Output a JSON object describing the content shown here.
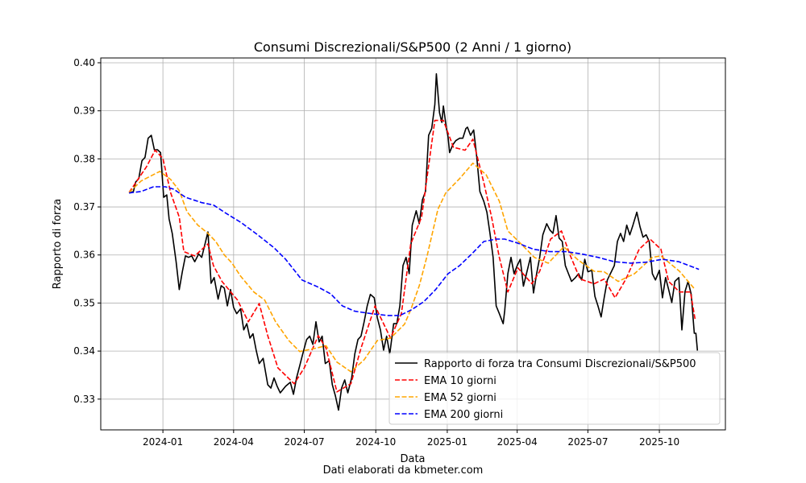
{
  "chart_data": {
    "type": "line",
    "title": "Consumi Discrezionali/S&P500 (2 Anni / 1 giorno)",
    "xlabel": "Data",
    "ylabel": "Rapporto di forza",
    "footnote": "Dati elaborati da kbmeter.com",
    "x_units": "days since 2024-01-01",
    "xlim": [
      -80,
      724
    ],
    "ylim": [
      0.3236,
      0.401
    ],
    "grid": true,
    "legend_position": "lower-right",
    "xticks": [
      {
        "value": 0,
        "label": "2024-01"
      },
      {
        "value": 91,
        "label": "2024-04"
      },
      {
        "value": 182,
        "label": "2024-07"
      },
      {
        "value": 274,
        "label": "2024-10"
      },
      {
        "value": 366,
        "label": "2025-01"
      },
      {
        "value": 456,
        "label": "2025-04"
      },
      {
        "value": 547,
        "label": "2025-07"
      },
      {
        "value": 639,
        "label": "2025-10"
      }
    ],
    "yticks": [
      {
        "value": 0.33,
        "label": "0.33"
      },
      {
        "value": 0.34,
        "label": "0.34"
      },
      {
        "value": 0.35,
        "label": "0.35"
      },
      {
        "value": 0.36,
        "label": "0.36"
      },
      {
        "value": 0.37,
        "label": "0.37"
      },
      {
        "value": 0.38,
        "label": "0.38"
      },
      {
        "value": 0.39,
        "label": "0.39"
      },
      {
        "value": 0.4,
        "label": "0.40"
      }
    ],
    "series": [
      {
        "name": "Rapporto di forza tra Consumi Discrezionali/S&P500",
        "color": "#000000",
        "style": "solid",
        "x": [
          -43.5,
          -38,
          -35,
          -31,
          -27,
          -23,
          -19,
          -15,
          -11,
          -7,
          -3,
          1,
          5,
          8,
          12,
          17,
          21,
          25,
          29,
          33,
          37,
          41,
          46,
          50,
          56,
          58,
          62,
          66,
          71,
          75,
          79,
          83,
          87,
          91,
          95,
          100,
          104,
          108,
          112,
          116,
          120,
          124,
          129,
          135,
          139,
          143,
          147,
          151,
          158,
          164,
          168,
          172,
          176,
          180,
          185,
          189,
          193,
          197,
          201,
          205,
          209,
          214,
          218,
          222,
          226,
          230,
          234,
          238,
          243,
          247,
          251,
          255,
          259,
          263,
          267,
          272,
          276,
          280,
          284,
          288,
          292,
          297,
          301,
          305,
          309,
          313,
          317,
          321,
          326,
          330,
          334,
          338,
          342,
          346,
          350,
          352,
          356,
          359,
          361,
          365,
          367,
          369,
          373,
          377,
          382,
          386,
          390,
          392,
          396,
          400,
          404,
          408,
          413,
          417,
          421,
          425,
          429,
          433,
          438,
          440,
          444,
          448,
          452,
          456,
          460,
          464,
          469,
          473,
          477,
          481,
          485,
          489,
          494,
          498,
          502,
          506,
          510,
          514,
          518,
          522,
          526,
          531,
          535,
          539,
          543,
          547,
          552,
          556,
          560,
          564,
          568,
          572,
          576,
          581,
          585,
          589,
          593,
          597,
          601,
          605,
          610,
          614,
          618,
          622,
          626,
          630,
          634,
          639,
          643,
          647,
          651,
          655,
          659,
          664,
          668,
          672,
          676,
          680,
          684,
          686,
          688
        ],
        "y": [
          0.3729,
          0.3732,
          0.3752,
          0.3759,
          0.3796,
          0.3803,
          0.3843,
          0.3849,
          0.3819,
          0.3819,
          0.3813,
          0.372,
          0.3725,
          0.3675,
          0.3645,
          0.3586,
          0.3528,
          0.3565,
          0.3598,
          0.3595,
          0.3598,
          0.3586,
          0.3602,
          0.3595,
          0.3635,
          0.3648,
          0.3541,
          0.3553,
          0.3508,
          0.3536,
          0.3531,
          0.3494,
          0.3528,
          0.3491,
          0.3478,
          0.3488,
          0.3444,
          0.3457,
          0.3427,
          0.3436,
          0.3402,
          0.3374,
          0.3385,
          0.333,
          0.3323,
          0.3344,
          0.3327,
          0.3313,
          0.3327,
          0.3335,
          0.331,
          0.3344,
          0.3369,
          0.3394,
          0.3424,
          0.3431,
          0.3414,
          0.3461,
          0.3419,
          0.3431,
          0.3374,
          0.338,
          0.333,
          0.3307,
          0.3277,
          0.3323,
          0.334,
          0.3313,
          0.3344,
          0.3394,
          0.3424,
          0.3431,
          0.3461,
          0.3494,
          0.3518,
          0.3511,
          0.3469,
          0.3444,
          0.3402,
          0.3431,
          0.3394,
          0.3457,
          0.3457,
          0.3494,
          0.3578,
          0.3595,
          0.3561,
          0.3662,
          0.3692,
          0.3665,
          0.3715,
          0.3732,
          0.3849,
          0.3863,
          0.3913,
          0.3977,
          0.3896,
          0.3876,
          0.391,
          0.3863,
          0.3846,
          0.3813,
          0.3829,
          0.3838,
          0.3843,
          0.3843,
          0.3863,
          0.3866,
          0.3849,
          0.386,
          0.3804,
          0.3732,
          0.3712,
          0.3689,
          0.3645,
          0.3595,
          0.3494,
          0.3478,
          0.3457,
          0.3484,
          0.3561,
          0.3595,
          0.3561,
          0.3578,
          0.3591,
          0.3535,
          0.3568,
          0.3595,
          0.3521,
          0.3561,
          0.3595,
          0.3642,
          0.3665,
          0.3652,
          0.3645,
          0.3682,
          0.3635,
          0.3628,
          0.3578,
          0.3561,
          0.3545,
          0.3553,
          0.3561,
          0.3548,
          0.3591,
          0.3565,
          0.3568,
          0.3514,
          0.3494,
          0.3471,
          0.3511,
          0.3548,
          0.3561,
          0.3578,
          0.3628,
          0.3645,
          0.3628,
          0.3662,
          0.3642,
          0.3662,
          0.3689,
          0.3659,
          0.3637,
          0.3642,
          0.3628,
          0.3561,
          0.3548,
          0.3568,
          0.3511,
          0.3553,
          0.3528,
          0.3501,
          0.3545,
          0.3553,
          0.3444,
          0.3524,
          0.3545,
          0.3518,
          0.3437,
          0.3437,
          0.3401
        ]
      },
      {
        "name": "EMA 10 giorni",
        "color": "#ff0000",
        "style": "dashed",
        "x": [
          -43.5,
          -21,
          -10,
          0,
          10,
          21,
          27,
          41,
          58,
          65,
          76,
          96,
          110,
          124,
          135,
          148,
          169,
          182,
          200,
          210,
          224,
          242,
          255,
          273,
          293,
          307,
          319,
          333,
          350,
          361,
          374,
          389,
          399,
          413,
          423,
          433,
          444,
          457,
          475,
          485,
          499,
          513,
          524,
          537,
          555,
          568,
          582,
          596,
          613,
          627,
          641,
          651,
          665,
          679,
          685
        ],
        "y": [
          0.373,
          0.3784,
          0.3818,
          0.3801,
          0.3729,
          0.3679,
          0.3607,
          0.3598,
          0.3623,
          0.3578,
          0.3545,
          0.3506,
          0.3461,
          0.3499,
          0.3432,
          0.3365,
          0.3332,
          0.3365,
          0.3432,
          0.3406,
          0.3315,
          0.3332,
          0.3406,
          0.3494,
          0.3427,
          0.3478,
          0.3623,
          0.3679,
          0.388,
          0.388,
          0.3824,
          0.3818,
          0.3841,
          0.3751,
          0.3679,
          0.3595,
          0.3523,
          0.3573,
          0.354,
          0.3566,
          0.3633,
          0.365,
          0.36,
          0.355,
          0.354,
          0.355,
          0.3511,
          0.355,
          0.3612,
          0.3633,
          0.3612,
          0.3545,
          0.3523,
          0.3523,
          0.3466
        ]
      },
      {
        "name": "EMA 52 giorni",
        "color": "#ffa500",
        "style": "dashed",
        "x": [
          -43.5,
          -28,
          -4,
          10,
          21,
          31,
          45,
          58,
          68,
          79,
          89,
          100,
          117,
          131,
          145,
          162,
          176,
          197,
          210,
          224,
          242,
          259,
          276,
          293,
          311,
          319,
          330,
          340,
          354,
          364,
          382,
          399,
          416,
          433,
          444,
          461,
          478,
          496,
          516,
          534,
          555,
          568,
          586,
          607,
          630,
          641,
          665,
          685
        ],
        "y": [
          0.373,
          0.3754,
          0.3774,
          0.3757,
          0.3734,
          0.369,
          0.3662,
          0.3645,
          0.3628,
          0.36,
          0.3583,
          0.3556,
          0.3523,
          0.3506,
          0.3461,
          0.3422,
          0.3399,
          0.3406,
          0.3411,
          0.3377,
          0.3357,
          0.3382,
          0.3422,
          0.3427,
          0.3456,
          0.3486,
          0.3536,
          0.3598,
          0.3695,
          0.3729,
          0.3759,
          0.3791,
          0.3767,
          0.3712,
          0.365,
          0.3623,
          0.3595,
          0.3583,
          0.3617,
          0.359,
          0.3566,
          0.3565,
          0.3545,
          0.3561,
          0.3595,
          0.3598,
          0.3566,
          0.3528
        ]
      },
      {
        "name": "EMA 200 giorni",
        "color": "#0000ff",
        "style": "dashed",
        "x": [
          -43.5,
          -28,
          -12,
          3,
          14,
          29,
          50,
          65,
          81,
          101,
          122,
          143,
          158,
          179,
          200,
          216,
          231,
          247,
          268,
          289,
          305,
          320,
          336,
          351,
          367,
          382,
          398,
          413,
          429,
          440,
          456,
          477,
          498,
          519,
          539,
          560,
          581,
          602,
          622,
          643,
          664,
          690
        ],
        "y": [
          0.3729,
          0.3732,
          0.3742,
          0.3742,
          0.3737,
          0.372,
          0.3709,
          0.3704,
          0.3687,
          0.3667,
          0.3642,
          0.3615,
          0.3591,
          0.3548,
          0.3533,
          0.3519,
          0.3494,
          0.3483,
          0.3478,
          0.3474,
          0.3474,
          0.3486,
          0.3503,
          0.3528,
          0.3561,
          0.3578,
          0.3603,
          0.3628,
          0.3633,
          0.3633,
          0.3625,
          0.3612,
          0.3607,
          0.3607,
          0.3602,
          0.3595,
          0.3586,
          0.3583,
          0.3585,
          0.3591,
          0.3586,
          0.357
        ]
      }
    ]
  }
}
